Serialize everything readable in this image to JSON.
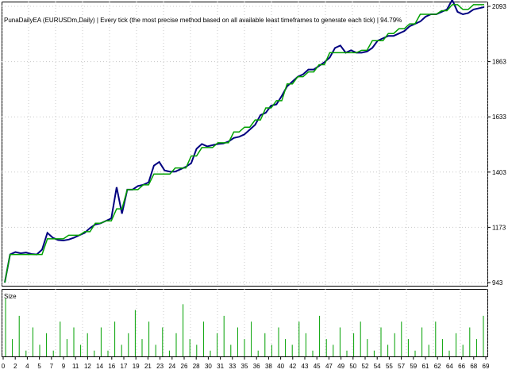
{
  "chart_data": [
    {
      "type": "line",
      "title": "PunaDailyEA (EURUSDm,Daily) | Every tick (the most precise method based on all available least timeframes to generate each tick) | 94.79%",
      "ylabel_ticks": [
        943,
        1173,
        1403,
        1633,
        1863,
        2093
      ],
      "ylim": [
        943,
        2093
      ],
      "xlim": [
        0,
        90
      ],
      "grid": true,
      "series": [
        {
          "color": "#000080",
          "x": [
            0,
            1,
            2,
            3,
            4,
            5,
            6,
            7,
            8,
            9,
            10,
            11,
            12,
            13,
            14,
            15,
            16,
            17,
            18,
            19,
            20,
            21,
            22,
            23,
            24,
            25,
            26,
            27,
            28,
            29,
            30,
            31,
            32,
            33,
            34,
            35,
            36,
            37,
            38,
            39,
            40,
            41,
            42,
            43,
            44,
            45,
            46,
            47,
            48,
            49,
            50,
            51,
            52,
            53,
            54,
            55,
            56,
            57,
            58,
            59,
            60,
            61,
            62,
            63,
            64,
            65,
            66,
            67,
            68,
            69,
            70,
            71,
            72,
            73,
            74,
            75,
            76,
            77,
            78,
            79,
            80,
            81,
            82,
            83,
            84,
            85,
            86,
            87,
            88,
            89,
            90
          ],
          "values": [
            943,
            1060,
            1070,
            1065,
            1068,
            1062,
            1060,
            1080,
            1150,
            1130,
            1120,
            1118,
            1122,
            1130,
            1140,
            1150,
            1170,
            1185,
            1190,
            1200,
            1210,
            1340,
            1230,
            1330,
            1330,
            1345,
            1350,
            1360,
            1430,
            1445,
            1410,
            1405,
            1405,
            1415,
            1425,
            1440,
            1500,
            1520,
            1510,
            1515,
            1520,
            1522,
            1530,
            1545,
            1550,
            1560,
            1580,
            1600,
            1640,
            1650,
            1680,
            1685,
            1720,
            1760,
            1780,
            1800,
            1810,
            1830,
            1830,
            1845,
            1860,
            1880,
            1920,
            1930,
            1900,
            1910,
            1900,
            1900,
            1905,
            1920,
            1950,
            1960,
            1970,
            1970,
            1980,
            1990,
            2010,
            2020,
            2030,
            2050,
            2060,
            2060,
            2070,
            2080,
            2120,
            2070,
            2060,
            2065,
            2080,
            2085,
            2090
          ]
        },
        {
          "color": "#00a000",
          "x": [
            0,
            1,
            2,
            3,
            4,
            5,
            6,
            7,
            8,
            9,
            10,
            11,
            12,
            13,
            14,
            15,
            16,
            17,
            18,
            19,
            20,
            21,
            22,
            23,
            24,
            25,
            26,
            27,
            28,
            29,
            30,
            31,
            32,
            33,
            34,
            35,
            36,
            37,
            38,
            39,
            40,
            41,
            42,
            43,
            44,
            45,
            46,
            47,
            48,
            49,
            50,
            51,
            52,
            53,
            54,
            55,
            56,
            57,
            58,
            59,
            60,
            61,
            62,
            63,
            64,
            65,
            66,
            67,
            68,
            69,
            70,
            71,
            72,
            73,
            74,
            75,
            76,
            77,
            78,
            79,
            80,
            81,
            82,
            83,
            84,
            85,
            86,
            87,
            88,
            89,
            90
          ],
          "values": [
            943,
            1060,
            1060,
            1060,
            1060,
            1060,
            1060,
            1060,
            1125,
            1125,
            1125,
            1125,
            1140,
            1140,
            1140,
            1155,
            1155,
            1190,
            1190,
            1200,
            1200,
            1250,
            1250,
            1330,
            1330,
            1330,
            1350,
            1350,
            1395,
            1395,
            1395,
            1395,
            1420,
            1420,
            1420,
            1470,
            1470,
            1505,
            1505,
            1505,
            1525,
            1525,
            1525,
            1570,
            1570,
            1590,
            1590,
            1620,
            1620,
            1670,
            1670,
            1700,
            1700,
            1770,
            1770,
            1800,
            1800,
            1820,
            1820,
            1850,
            1850,
            1900,
            1900,
            1900,
            1900,
            1900,
            1900,
            1910,
            1910,
            1950,
            1950,
            1950,
            1980,
            1980,
            2000,
            2000,
            2020,
            2020,
            2060,
            2060,
            2060,
            2060,
            2075,
            2075,
            2100,
            2100,
            2080,
            2080,
            2100,
            2100,
            2100
          ]
        }
      ]
    },
    {
      "type": "bar",
      "title": "Size",
      "x_ticks": [
        "0",
        "2",
        "4",
        "5",
        "7",
        "9",
        "11",
        "12",
        "14",
        "16",
        "17",
        "19",
        "21",
        "23",
        "24",
        "26",
        "28",
        "30",
        "31",
        "33",
        "35",
        "36",
        "38",
        "40",
        "42",
        "43",
        "45",
        "47",
        "49",
        "50",
        "52",
        "54",
        "55",
        "57",
        "59",
        "61",
        "62",
        "64",
        "66",
        "68",
        "69"
      ],
      "values": [
        1.0,
        0.3,
        0.7,
        0.1,
        0.5,
        0.2,
        0.4,
        0.1,
        0.6,
        0.3,
        0.5,
        0.2,
        0.4,
        0.1,
        0.5,
        0.1,
        0.6,
        0.2,
        0.4,
        0.8,
        0.3,
        0.6,
        0.2,
        0.5,
        0.1,
        0.4,
        0.9,
        0.3,
        0.2,
        0.6,
        0.1,
        0.4,
        0.7,
        0.2,
        0.5,
        0.3,
        0.6,
        0.1,
        0.4,
        0.2,
        0.5,
        0.3,
        0.2,
        0.6,
        0.4,
        0.1,
        0.7,
        0.3,
        0.2,
        0.5,
        0.1,
        0.4,
        0.6,
        0.3,
        0.1,
        0.5,
        0.2,
        0.4,
        0.6,
        0.3,
        0.1,
        0.5,
        0.2,
        0.6,
        0.3,
        0.1,
        0.4,
        0.2,
        0.5,
        0.3,
        0.7
      ]
    }
  ],
  "axis": {
    "y_labels": [
      "943",
      "1173",
      "1403",
      "1633",
      "1863",
      "2093"
    ],
    "x_labels": [
      "0",
      "2",
      "4",
      "5",
      "7",
      "9",
      "11",
      "12",
      "14",
      "16",
      "17",
      "19",
      "21",
      "23",
      "24",
      "26",
      "28",
      "30",
      "31",
      "33",
      "35",
      "36",
      "38",
      "40",
      "42",
      "43",
      "45",
      "47",
      "49",
      "50",
      "52",
      "54",
      "55",
      "57",
      "59",
      "61",
      "62",
      "64",
      "66",
      "68",
      "69"
    ]
  }
}
